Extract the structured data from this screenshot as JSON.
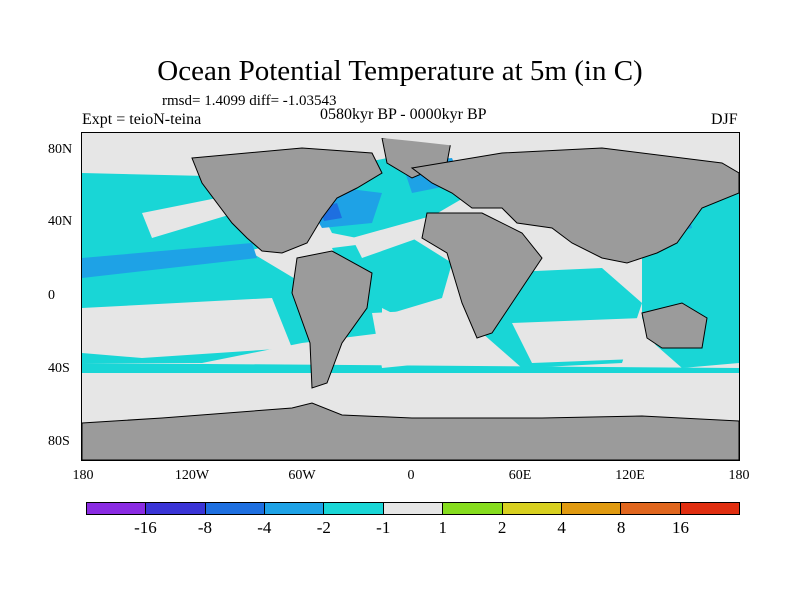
{
  "title": "Ocean Potential Temperature at 5m (in C)",
  "stats": "rmsd= 1.4099 diff= -1.03543",
  "experiment": "Expt = teioN-teina",
  "period": "0580kyr BP - 0000kyr BP",
  "season": "DJF",
  "lat_labels": [
    "80N",
    "40N",
    "0",
    "40S",
    "80S"
  ],
  "lon_labels": [
    "180",
    "120W",
    "60W",
    "0",
    "60E",
    "120E",
    "180"
  ],
  "colorbar": {
    "colors": [
      "#8a2be2",
      "#3a34d6",
      "#1e6fe0",
      "#1ea2e6",
      "#19d6d6",
      "#e6e6e6",
      "#86dc1e",
      "#d8d020",
      "#e09a10",
      "#e0661e",
      "#e02e10"
    ],
    "labels": [
      "-16",
      "-8",
      "-4",
      "-2",
      "-1",
      "1",
      "2",
      "4",
      "8",
      "16"
    ]
  },
  "map_colors": {
    "land": "#9b9b9b",
    "ocean_neutral": "#e6e6e6",
    "cool_1": "#19d6d6",
    "cool_2": "#1ea2e6",
    "cool_4": "#1e6fe0",
    "warm_1": "#86dc1e",
    "warm_2": "#d8d020"
  }
}
